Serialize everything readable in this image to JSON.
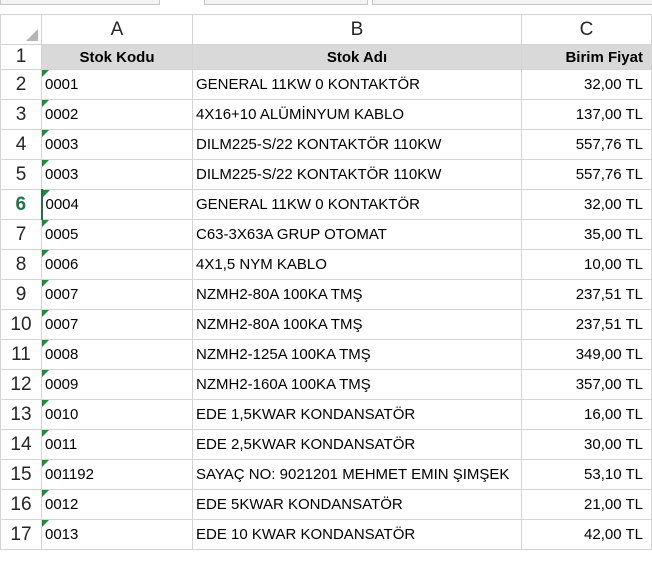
{
  "columns": [
    "A",
    "B",
    "C"
  ],
  "header_row": {
    "row_number": "1",
    "cells": [
      "Stok Kodu",
      "Stok Adı",
      "Birim Fiyat"
    ]
  },
  "active_row": "6",
  "rows": [
    {
      "n": "2",
      "code": "0001",
      "name": "GENERAL 11KW 0 KONTAKTÖR",
      "price": "32,00 TL"
    },
    {
      "n": "3",
      "code": "0002",
      "name": "4X16+10 ALÜMİNYUM KABLO",
      "price": "137,00 TL"
    },
    {
      "n": "4",
      "code": "0003",
      "name": "DILM225-S/22 KONTAKTÖR 110KW",
      "price": "557,76 TL"
    },
    {
      "n": "5",
      "code": "0003",
      "name": "DILM225-S/22 KONTAKTÖR 110KW",
      "price": "557,76 TL"
    },
    {
      "n": "6",
      "code": "0004",
      "name": "GENERAL 11KW 0 KONTAKTÖR",
      "price": "32,00 TL"
    },
    {
      "n": "7",
      "code": "0005",
      "name": "C63-3X63A GRUP OTOMAT",
      "price": "35,00 TL"
    },
    {
      "n": "8",
      "code": "0006",
      "name": "4X1,5 NYM KABLO",
      "price": "10,00 TL"
    },
    {
      "n": "9",
      "code": "0007",
      "name": "NZMH2-80A 100KA TMŞ",
      "price": "237,51 TL"
    },
    {
      "n": "10",
      "code": "0007",
      "name": "NZMH2-80A 100KA TMŞ",
      "price": "237,51 TL"
    },
    {
      "n": "11",
      "code": "0008",
      "name": "NZMH2-125A 100KA TMŞ",
      "price": "349,00 TL"
    },
    {
      "n": "12",
      "code": "0009",
      "name": "NZMH2-160A 100KA TMŞ",
      "price": "357,00 TL"
    },
    {
      "n": "13",
      "code": "0010",
      "name": "EDE 1,5KWAR KONDANSATÖR",
      "price": "16,00 TL"
    },
    {
      "n": "14",
      "code": "0011",
      "name": "EDE 2,5KWAR KONDANSATÖR",
      "price": "30,00 TL"
    },
    {
      "n": "15",
      "code": "001192",
      "name": "SAYAÇ NO: 9021201 MEHMET EMIN ŞIMŞEK",
      "price": "53,10 TL"
    },
    {
      "n": "16",
      "code": "0012",
      "name": "EDE 5KWAR KONDANSATÖR",
      "price": "21,00 TL"
    },
    {
      "n": "17",
      "code": "0013",
      "name": "EDE 10 KWAR KONDANSATÖR",
      "price": "42,00 TL"
    }
  ]
}
